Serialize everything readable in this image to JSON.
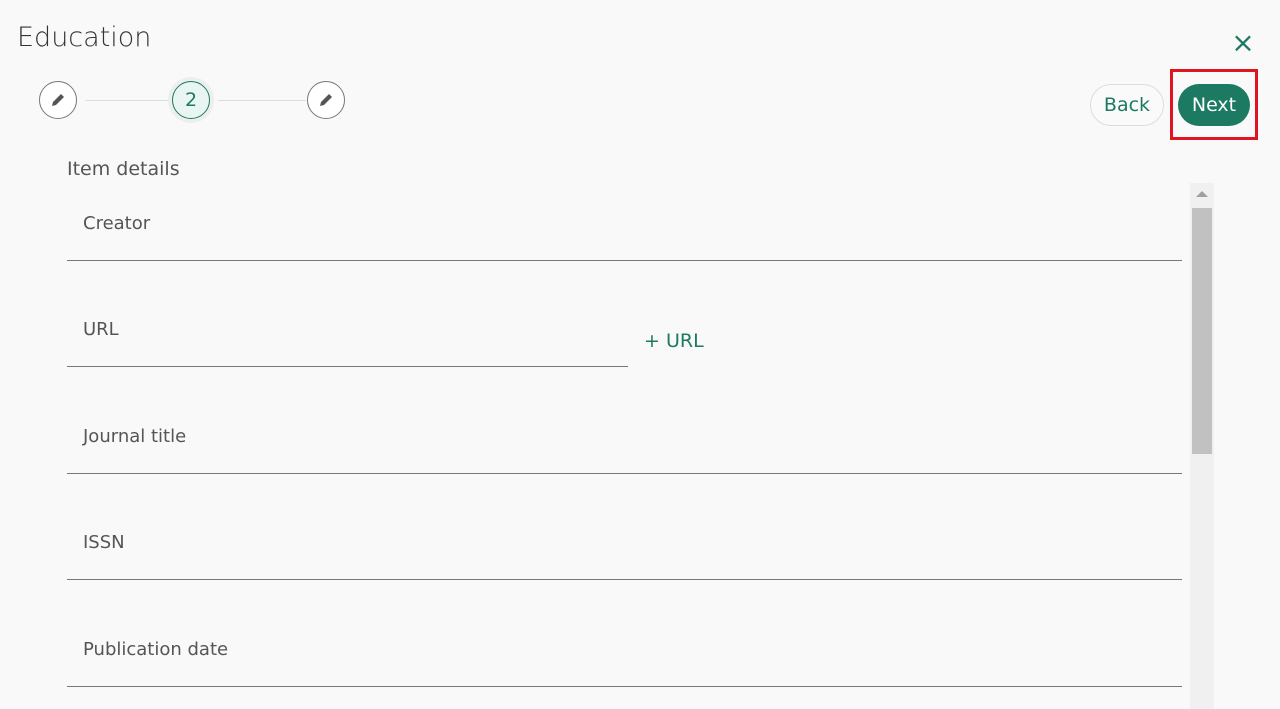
{
  "dialog": {
    "title": "Education",
    "close_icon": "close-icon"
  },
  "stepper": {
    "steps": [
      {
        "icon": "pencil-icon"
      },
      {
        "label": "2",
        "active": true
      },
      {
        "icon": "pencil-icon"
      }
    ]
  },
  "actions": {
    "back": "Back",
    "next": "Next"
  },
  "form": {
    "section": "Item details",
    "fields": [
      {
        "label": "Creator"
      },
      {
        "label": "URL"
      },
      {
        "label": "Journal title"
      },
      {
        "label": "ISSN"
      },
      {
        "label": "Publication date"
      }
    ],
    "add_url": "URL"
  },
  "colors": {
    "accent": "#1c7a63",
    "highlight": "#e0141e"
  }
}
